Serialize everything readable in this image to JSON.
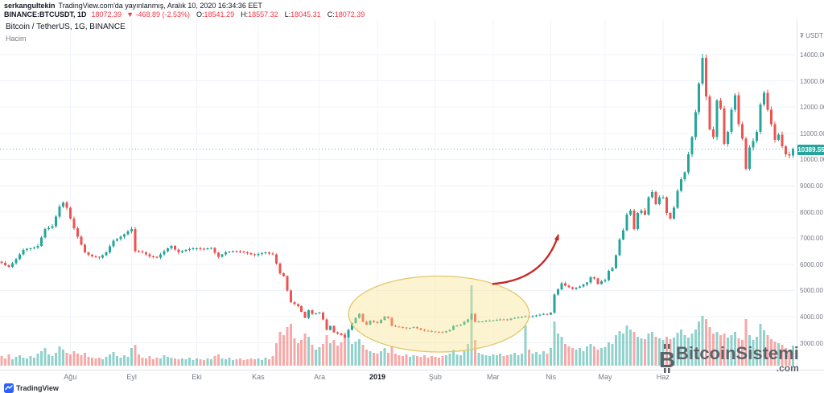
{
  "header": {
    "byline": {
      "author": "serkangultekin",
      "text": "TradingView.com'da yayınlanmış, Aralık 10, 2020 16:34:36 EET"
    },
    "symbol_row": {
      "symbol": "BINANCE:BTCUSDT, 1D",
      "last_price": "18072.39",
      "change": "▼ -468.89 (-2.53%)",
      "ohlc": [
        {
          "label": "O:",
          "value": "18541.29"
        },
        {
          "label": "H:",
          "value": "18557.32"
        },
        {
          "label": "L:",
          "value": "18045.31"
        },
        {
          "label": "C:",
          "value": "18072.39"
        }
      ]
    }
  },
  "legend": {
    "title": "Bitcoin / TetherUS, 1G, BINANCE",
    "indicator": "Hacim"
  },
  "price_scale": {
    "currency_symbol": "₮",
    "currency": "USDT",
    "last_price_label": "10389.55"
  },
  "watermark": {
    "icon": "bitcoin-icon",
    "brand": "BitcoinSistemi",
    "tld": ".com"
  },
  "footer": {
    "brand": "TradingView"
  },
  "colors": {
    "up": "#26a69a",
    "down": "#ef5350",
    "red_text": "#f23645",
    "badge": "#26a69a",
    "annotation_red": "#c62828",
    "annotation_yellow_fill": "#f7e385",
    "annotation_yellow_stroke": "#e1c66a",
    "grid": "#f0f3fa"
  },
  "chart_data": {
    "type": "candlestick_with_volume",
    "title": "Bitcoin / TetherUS, 1G, BINANCE",
    "exchange": "BINANCE",
    "symbol": "BTCUSDT",
    "interval": "1G",
    "unit": "USDT",
    "ylim": [
      3000,
      14000
    ],
    "y_ticks": [
      3000,
      4000,
      5000,
      6000,
      7000,
      8000,
      9000,
      10000,
      11000,
      12000,
      13000,
      14000
    ],
    "x_month_labels": [
      {
        "label": "Ağu",
        "index": 19
      },
      {
        "label": "Eyl",
        "index": 36
      },
      {
        "label": "Eki",
        "index": 54
      },
      {
        "label": "Kas",
        "index": 71
      },
      {
        "label": "Ara",
        "index": 88
      },
      {
        "label": "2019",
        "index": 104
      },
      {
        "label": "Şub",
        "index": 120
      },
      {
        "label": "Mar",
        "index": 136
      },
      {
        "label": "Nis",
        "index": 152
      },
      {
        "label": "May",
        "index": 167
      },
      {
        "label": "Haz",
        "index": 183
      }
    ],
    "first_open": 6100,
    "closes": [
      6050,
      5960,
      5900,
      6040,
      6200,
      6380,
      6550,
      6590,
      6600,
      6640,
      6700,
      7020,
      7350,
      7390,
      7450,
      7820,
      8200,
      8350,
      8150,
      7750,
      7380,
      7050,
      6740,
      6450,
      6360,
      6300,
      6280,
      6250,
      6340,
      6450,
      6680,
      6900,
      6960,
      7050,
      7140,
      7250,
      7350,
      6500,
      6480,
      6450,
      6370,
      6300,
      6280,
      6250,
      6380,
      6500,
      6600,
      6700,
      6560,
      6450,
      6500,
      6550,
      6580,
      6600,
      6600,
      6590,
      6580,
      6600,
      6620,
      6440,
      6280,
      6370,
      6450,
      6480,
      6500,
      6490,
      6480,
      6450,
      6420,
      6380,
      6350,
      6400,
      6430,
      6450,
      6410,
      6380,
      6020,
      5650,
      5550,
      5000,
      4550,
      4480,
      4400,
      4180,
      3950,
      4250,
      4100,
      4130,
      4150,
      3900,
      3500,
      3650,
      3400,
      3350,
      3300,
      3200,
      3500,
      3750,
      3950,
      4100,
      3800,
      3700,
      3850,
      3800,
      3750,
      3880,
      4000,
      3950,
      3650,
      3620,
      3600,
      3580,
      3550,
      3570,
      3600,
      3550,
      3500,
      3470,
      3450,
      3430,
      3420,
      3410,
      3400,
      3450,
      3500,
      3650,
      3670,
      3700,
      3800,
      3900,
      4100,
      3800,
      3810,
      3820,
      3840,
      3850,
      3860,
      3880,
      3900,
      3890,
      3880,
      3920,
      3950,
      3970,
      4000,
      4010,
      3980,
      4020,
      4050,
      4080,
      4100,
      4080,
      4150,
      4850,
      5050,
      5280,
      5180,
      5120,
      5060,
      5100,
      5150,
      5220,
      5300,
      5500,
      5450,
      5250,
      5350,
      5400,
      5750,
      5850,
      6350,
      6950,
      7300,
      7900,
      8050,
      7350,
      7950,
      8050,
      7900,
      8550,
      8750,
      8300,
      8550,
      8550,
      7950,
      7750,
      8150,
      8800,
      9250,
      9500,
      10200,
      10850,
      11800,
      12900,
      13880,
      12400,
      11150,
      10850,
      12250,
      11950,
      10600,
      11050,
      11900,
      12450,
      11350,
      10800,
      9650,
      10450,
      10700,
      11050,
      12100,
      12550,
      11900,
      11350,
      10750,
      10950,
      10500,
      10200,
      10150,
      10389.55
    ],
    "volumes_rel": [
      12,
      9,
      14,
      8,
      11,
      13,
      10,
      9,
      12,
      10,
      15,
      18,
      22,
      14,
      12,
      16,
      24,
      20,
      16,
      14,
      18,
      15,
      13,
      16,
      11,
      10,
      9,
      10,
      8,
      11,
      14,
      17,
      12,
      10,
      13,
      11,
      22,
      26,
      14,
      10,
      9,
      12,
      8,
      10,
      9,
      13,
      11,
      10,
      9,
      8,
      9,
      8,
      10,
      7,
      9,
      8,
      7,
      9,
      8,
      12,
      14,
      9,
      8,
      10,
      7,
      8,
      9,
      7,
      8,
      9,
      8,
      9,
      7,
      10,
      8,
      12,
      28,
      42,
      38,
      48,
      52,
      34,
      28,
      32,
      40,
      36,
      26,
      20,
      23,
      27,
      38,
      28,
      32,
      25,
      29,
      41,
      34,
      27,
      30,
      33,
      26,
      20,
      18,
      16,
      15,
      18,
      22,
      16,
      24,
      15,
      13,
      12,
      14,
      11,
      13,
      12,
      11,
      13,
      10,
      12,
      11,
      10,
      12,
      13,
      15,
      20,
      14,
      13,
      18,
      27,
      100,
      32,
      16,
      14,
      13,
      12,
      14,
      13,
      15,
      12,
      13,
      14,
      16,
      13,
      15,
      50,
      20,
      15,
      17,
      14,
      18,
      15,
      22,
      55,
      40,
      36,
      27,
      24,
      22,
      20,
      22,
      18,
      24,
      27,
      24,
      20,
      22,
      23,
      29,
      27,
      38,
      43,
      40,
      50,
      45,
      42,
      36,
      34,
      33,
      40,
      42,
      36,
      34,
      32,
      36,
      33,
      35,
      41,
      45,
      38,
      35,
      40,
      45,
      55,
      62,
      58,
      48,
      40,
      42,
      38,
      40,
      35,
      38,
      42,
      34,
      32,
      58,
      38,
      32,
      36,
      52,
      44,
      38,
      33,
      30,
      28,
      26,
      22,
      20,
      25
    ],
    "last_price": 10389.55,
    "annotations": {
      "highlight_ellipse": {
        "center_index": 121,
        "center_price": 4100,
        "rx_index": 25,
        "ry_price": 1450
      },
      "arrow": {
        "from_index": 136,
        "from_price": 5250,
        "to_index": 154,
        "to_price": 7100
      }
    }
  }
}
